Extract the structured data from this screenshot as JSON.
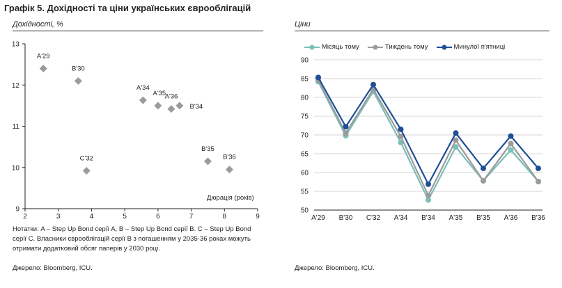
{
  "figure": {
    "title": "Графік 5. Дохідності та ціни українських єврооблігацій"
  },
  "left_panel": {
    "subtitle": "Дохідності, %",
    "note": "Нотатки: A – Step Up Bond серії A, B – Step Up Bond серії B. C – Step Up Bond серії C. Власники єврооблігацій серії B з погашенням у 2035-36 роках можуть отримати додатковий обсяг паперів у 2030 році.",
    "source": "Джерело: Bloomberg, ICU."
  },
  "right_panel": {
    "subtitle": "Ціни",
    "source": "Джерело: Bloomberg, ICU."
  },
  "colors": {
    "scatter_marker": "#9b9b9b",
    "month_ago": "#7bbfb8",
    "week_ago": "#9b9b9b",
    "last_friday": "#1f4e96"
  },
  "chart_data": [
    {
      "type": "scatter",
      "title": "",
      "xlabel": "Дюрація (років)",
      "ylabel": "Дохідності, %",
      "xlim": [
        2,
        9
      ],
      "ylim": [
        9,
        13
      ],
      "xticks": [
        "2",
        "3",
        "4",
        "5",
        "6",
        "7",
        "8",
        "9"
      ],
      "yticks": [
        "9",
        "10",
        "11",
        "12",
        "13"
      ],
      "grid": false,
      "points": [
        {
          "label": "A'29",
          "x": 2.55,
          "y": 12.4
        },
        {
          "label": "B'30",
          "x": 3.6,
          "y": 12.1
        },
        {
          "label": "C'32",
          "x": 3.85,
          "y": 9.92
        },
        {
          "label": "A'34",
          "x": 5.55,
          "y": 11.63
        },
        {
          "label": "A'35",
          "x": 6.0,
          "y": 11.5
        },
        {
          "label": "A'36",
          "x": 6.4,
          "y": 11.42
        },
        {
          "label": "B'34",
          "x": 6.65,
          "y": 11.5
        },
        {
          "label": "B'35",
          "x": 7.5,
          "y": 10.15
        },
        {
          "label": "B'36",
          "x": 8.15,
          "y": 9.95
        }
      ]
    },
    {
      "type": "line",
      "title": "",
      "xlabel": "",
      "ylabel": "Ціни",
      "ylim": [
        50,
        90
      ],
      "yticks": [
        "50",
        "55",
        "60",
        "65",
        "70",
        "75",
        "80",
        "85",
        "90"
      ],
      "grid": true,
      "legend_position": "top",
      "categories": [
        "A'29",
        "B'30",
        "C'32",
        "A'34",
        "B'34",
        "A'35",
        "B'35",
        "A'36",
        "B'36"
      ],
      "series": [
        {
          "name": "Місяць тому",
          "values": [
            84.2,
            69.8,
            81.6,
            68.0,
            52.7,
            66.8,
            57.8,
            66.0,
            57.6
          ]
        },
        {
          "name": "Тиждень тому",
          "values": [
            84.6,
            70.5,
            82.2,
            69.6,
            53.9,
            68.6,
            57.8,
            67.7,
            57.6
          ]
        },
        {
          "name": "Минулої п'ятниці",
          "values": [
            85.3,
            72.2,
            83.4,
            71.5,
            56.9,
            70.5,
            61.1,
            69.7,
            61.1
          ]
        }
      ]
    }
  ]
}
